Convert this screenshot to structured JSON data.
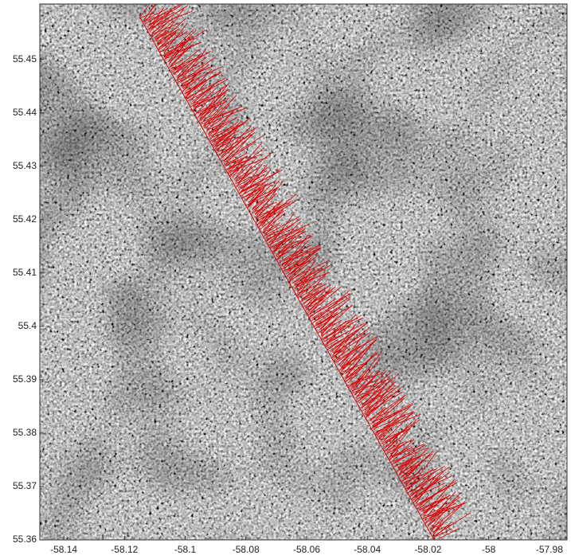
{
  "chart_data": {
    "type": "line",
    "x": [
      -58.115,
      -58.018
    ],
    "y": [
      55.458,
      55.36
    ],
    "color": "#e00000",
    "xlim": [
      -58.1479,
      -57.9742
    ],
    "ylim": [
      55.36,
      55.4604
    ],
    "xticks": [
      -58.14,
      -58.12,
      -58.1,
      -58.08,
      -58.06,
      -58.04,
      -58.02,
      -58,
      -57.98
    ],
    "yticks": [
      55.36,
      55.37,
      55.38,
      55.39,
      55.4,
      55.41,
      55.42,
      55.43,
      55.44,
      55.45
    ]
  }
}
